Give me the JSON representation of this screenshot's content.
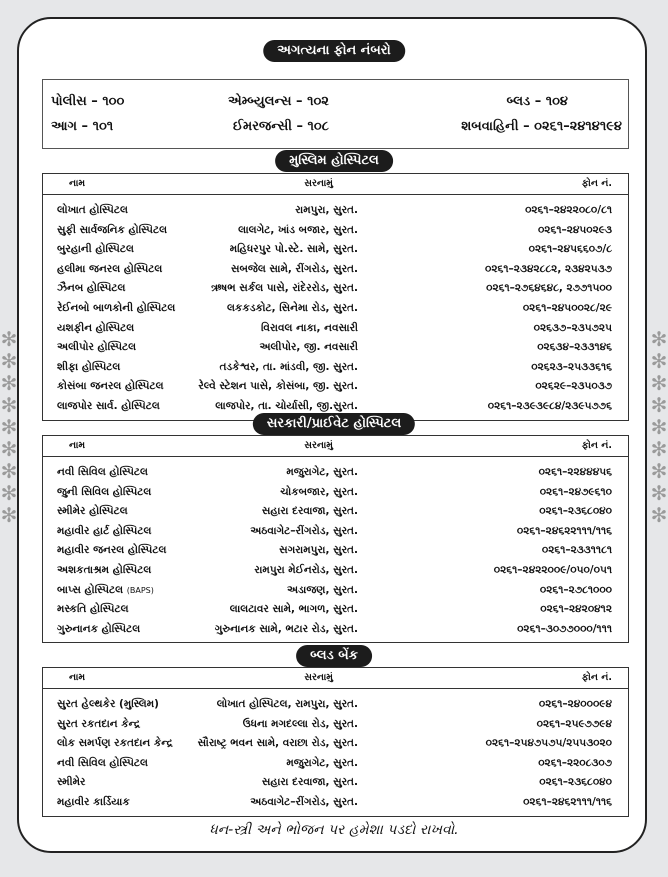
{
  "title": "અગત્યના ફોન નંબરો",
  "emergency": [
    [
      {
        "label": "પોલીસ – ૧૦૦"
      },
      {
        "label": "એમ્બ્યુલન્સ  – ૧૦૨"
      },
      {
        "label": "બ્લડ – ૧૦૪"
      }
    ],
    [
      {
        "label": "આગ – ૧૦૧"
      },
      {
        "label": "ઈમરજન્સી – ૧૦૮"
      },
      {
        "label": "શબવાહિની – ૦૨૬૧–૨૪૧૪૧૯૪"
      }
    ]
  ],
  "columns": {
    "name": "નામ",
    "address": "સરનામું",
    "phone": "ફોન નં."
  },
  "sections": [
    {
      "title": "મુસ્લિમ હોસ્પિટલ",
      "rows": [
        {
          "name": "લોખાત હોસ્પિટલ",
          "address": "રામપુરા, સુરત.",
          "phone": "૦૨૬૧–૨૪૨૨૦૮૦/૮૧"
        },
        {
          "name": "સુફી સાર્વજનિક હોસ્પિટલ",
          "address": "લાલગેટ, ખાંડ બજાર, સુરત.",
          "phone": "૦૨૬૧–૨૪૫૦૨૯૩"
        },
        {
          "name": "બુરહાની હોસ્પિટલ",
          "address": "મહિધરપુર પો.સ્ટે. સામે, સુરત.",
          "phone": "૦૨૬૧–૨૪૫૬૬૦૭/૮"
        },
        {
          "name": "હલીમા જનરલ હોસ્પિટલ",
          "address": "સબજેલ સામે, રીંગરોડ, સુરત.",
          "phone": "૦૨૬૧–૨૩૪૨૮૮૨, ૨૩૪૨૫૩૭"
        },
        {
          "name": "ઝૈનબ હોસ્પિટલ",
          "address": "ઋષભ સર્કલ પાસે, રાંદેરરોડ, સુરત.",
          "phone": "૦૨૬૧–૨૭૬૪૬૪૮, ૨૭૭૧૫૦૦"
        },
        {
          "name": "રેઈનબો બાળકોની હોસ્પિટલ",
          "address": "લકકડકોટ, સિનેમા રોડ, સુરત.",
          "phone": "૦૨૬૧–૨૪૫૦૦૨૮/૨૯"
        },
        {
          "name": "યશફીન હોસ્પિટલ",
          "address": "વિરાવલ નાકા, નવસારી",
          "phone": "૦૨૬૩૭–૨૩૫૭૨૫"
        },
        {
          "name": "અલીપોર હોસ્પિટલ",
          "address": "અલીપોર, જી. નવસારી",
          "phone": "૦૨૬૩૪–૨૩૩૧૪૬"
        },
        {
          "name": "શીફા હોસ્પિટલ",
          "address": "તડકેશ્વર, તા. માંડવી, જી. સુરત.",
          "phone": "૦૨૬૨૩–૨૫૩૩૬૧૬"
        },
        {
          "name": "કોસંબા જનરલ હોસ્પિટલ",
          "address": "રેલ્વે સ્ટેશન પાસે, કોસંબા, જી. સુરત.",
          "phone": "૦૨૬૨૯–૨૩૫૦૩૭"
        },
        {
          "name": "લાજપોર સાર્વ. હોસ્પિટલ",
          "address": "લાજપોર, તા. ચોર્યાસી, જી.સુરત.",
          "phone": "૦૨૬૧–૨૩૯૩૯૮૪/૨૩૯૫૭૭૬"
        }
      ]
    },
    {
      "title": "સરકારી/પ્રાઈવેટ હોસ્પિટલ",
      "rows": [
        {
          "name": "નવી સિવિલ હોસ્પિટલ",
          "address": "મજુરાગેટ, સુરત.",
          "phone": "૦૨૬૧–૨૨૪૪૪૫૬"
        },
        {
          "name": "જુની સિવિલ હોસ્પિટલ",
          "address": "ચોકબજાર, સુરત.",
          "phone": "૦૨૬૧–૨૪૭૯૬૧૦"
        },
        {
          "name": "સ્મીમેર હોસ્પિટલ",
          "address": "સહારા દરવાજા, સુરત.",
          "phone": "૦૨૬૧–૨૩૬૮૦૪૦"
        },
        {
          "name": "મહાવીર હાર્ટ હોસ્પિટલ",
          "address": "અઠવાગેટ–રીંગરોડ, સુરત.",
          "phone": "૦૨૬૧–૨૪૬૨૨૧૧૧/૧૧૬"
        },
        {
          "name": "મહાવીર જનરલ હોસ્પિટલ",
          "address": "સગરામપુરા, સુરત.",
          "phone": "૦૨૬૧–૨૩૩૧૧૮૧"
        },
        {
          "name": "અશકતાશ્રમ હોસ્પિટલ",
          "address": "રામપુરા મેઈનરોડ, સુરત.",
          "phone": "૦૨૬૧–૨૪૨૨૦૦૯/૦૫૦/૦૫૧"
        },
        {
          "name": "બાપ્સ હોસ્પિટલ",
          "name_note": "(BAPS)",
          "address": "અડાજણ, સુરત.",
          "phone": "૦૨૬૧–૨૭૮૧૦૦૦"
        },
        {
          "name": "મસ્કતિ  હોસ્પિટલ",
          "address": "લાલટાવર સામે, ભાગળ, સુરત.",
          "phone": "૦૨૬૧–૨૪૨૦૪૧૨"
        },
        {
          "name": "ગુરુનાનક હોસ્પિટલ",
          "address": "ગુરુનાનક સામે, ભટાર રોડ, સુરત.",
          "phone": "૦૨૬૧–૩૦૭૭૦૦૦/૧૧૧"
        }
      ]
    },
    {
      "title": "બ્લડ બેંક",
      "rows": [
        {
          "name": "સુરત હેલ્થકેર (મુસ્લિમ)",
          "address": "લોખાત હોસ્પિટલ, રામપુરા, સુરત.",
          "phone": "૦૨૬૧–૨૪૦૦૦૯૪"
        },
        {
          "name": "સુરત રકતદાન કેન્દ્ર",
          "address": "ઉધના મગદલ્લા રોડ, સુરત.",
          "phone": "૦૨૬૧–૨૫૯૭૭૯૪"
        },
        {
          "name": "લોક સમર્પણ રકતદાન કેન્દ્ર",
          "address": "સૌરાષ્ટ્ર ભવન સામે, વરાછા રોડ, સુરત.",
          "phone": "૦૨૬૧–૨૫૪૭૫૭૫/૨૫૫૩૦૨૦"
        },
        {
          "name": "નવી સિવિલ હોસ્પિટલ",
          "address": "મજુરાગેટ, સુરત.",
          "phone": "૦૨૬૧–૨૨૦૮૩૦૭"
        },
        {
          "name": "સ્મીમેર",
          "address": "સહારા દરવાજા, સુરત.",
          "phone": "૦૨૬૧–૨૩૬૮૦૪૦"
        },
        {
          "name": "મહાવીર કાર્ડિયાક",
          "address": "અઠવાગેટ–રીંગરોડ, સુરત.",
          "phone": "૦૨૬૧–૨૪૬૨૧૧૧/૧૧૬"
        }
      ]
    }
  ],
  "footer": "ધન-સ્ત્રી અને ભોજન પર હમેશા પડદો રાખવો.",
  "colors": {
    "background": "#e6e7e9",
    "pill": "#1c1c1c",
    "decoration": "#9a9a9a"
  }
}
